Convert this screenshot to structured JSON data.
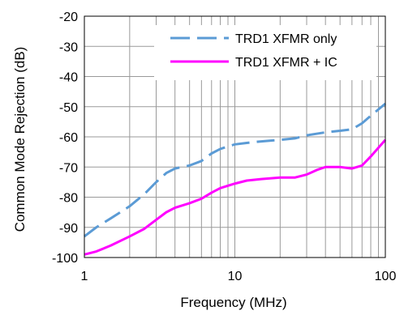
{
  "chart_data": {
    "type": "line",
    "xscale": "log",
    "xlim": [
      1,
      100
    ],
    "ylim": [
      -100,
      -20
    ],
    "xlabel": "Frequency (MHz)",
    "ylabel": "Common Mode Rejection (dB)",
    "x_ticks": [
      "1",
      "10",
      "100"
    ],
    "y_ticks": [
      "-20",
      "-30",
      "-40",
      "-50",
      "-60",
      "-70",
      "-80",
      "-90",
      "-100"
    ],
    "grid": true,
    "legend_position": "top-right",
    "series": [
      {
        "name": "TRD1 XFMR only",
        "color": "#5b9bd5",
        "style": "dashed",
        "x": [
          1,
          1.2,
          1.5,
          2,
          2.5,
          3,
          3.5,
          4,
          5,
          6,
          7,
          8,
          10,
          12,
          15,
          20,
          25,
          30,
          40,
          50,
          60,
          70,
          80,
          100
        ],
        "y": [
          -93,
          -90,
          -87,
          -83,
          -79,
          -75,
          -72,
          -70.5,
          -69.5,
          -68,
          -65.5,
          -64,
          -62.5,
          -62,
          -61.5,
          -61,
          -60.5,
          -59.5,
          -58.5,
          -58,
          -57.5,
          -55.5,
          -53,
          -49
        ]
      },
      {
        "name": "TRD1 XFMR + IC",
        "color": "#ff00ff",
        "style": "solid",
        "x": [
          1,
          1.2,
          1.5,
          2,
          2.5,
          3,
          3.5,
          4,
          5,
          6,
          7,
          8,
          10,
          12,
          15,
          20,
          25,
          30,
          35,
          40,
          50,
          60,
          70,
          80,
          100
        ],
        "y": [
          -99,
          -98,
          -96,
          -93,
          -90.5,
          -87.5,
          -85,
          -83.5,
          -82,
          -80.5,
          -78.5,
          -77,
          -75.5,
          -74.5,
          -74,
          -73.5,
          -73.5,
          -72.5,
          -71,
          -70,
          -70,
          -70.5,
          -69.5,
          -66.5,
          -61
        ]
      }
    ]
  }
}
